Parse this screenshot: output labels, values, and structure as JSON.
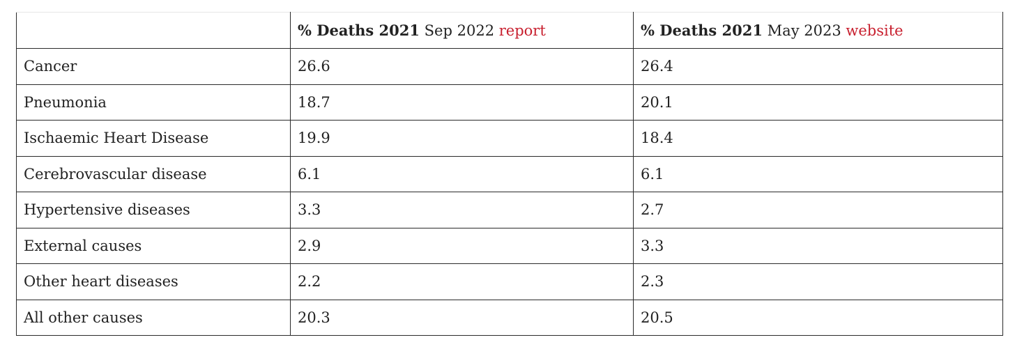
{
  "table": {
    "headers": [
      {
        "bold": "",
        "plain": "",
        "link": ""
      },
      {
        "bold": "% Deaths 2021",
        "plain": " Sep 2022 ",
        "link": "report"
      },
      {
        "bold": "% Deaths 2021",
        "plain": " May 2023 ",
        "link": "website"
      }
    ],
    "rows": [
      {
        "cause": "Cancer",
        "sep2022": "26.6",
        "may2023": "26.4"
      },
      {
        "cause": "Pneumonia",
        "sep2022": "18.7",
        "may2023": "20.1"
      },
      {
        "cause": "Ischaemic Heart Disease",
        "sep2022": "19.9",
        "may2023": "18.4"
      },
      {
        "cause": "Cerebrovascular disease",
        "sep2022": "6.1",
        "may2023": "6.1"
      },
      {
        "cause": "Hypertensive diseases",
        "sep2022": "3.3",
        "may2023": "2.7"
      },
      {
        "cause": "External causes",
        "sep2022": "2.9",
        "may2023": "3.3"
      },
      {
        "cause": "Other heart diseases",
        "sep2022": "2.2",
        "may2023": "2.3"
      },
      {
        "cause": "All other causes",
        "sep2022": "20.3",
        "may2023": "20.5"
      }
    ],
    "link_color": "#c8202f"
  }
}
